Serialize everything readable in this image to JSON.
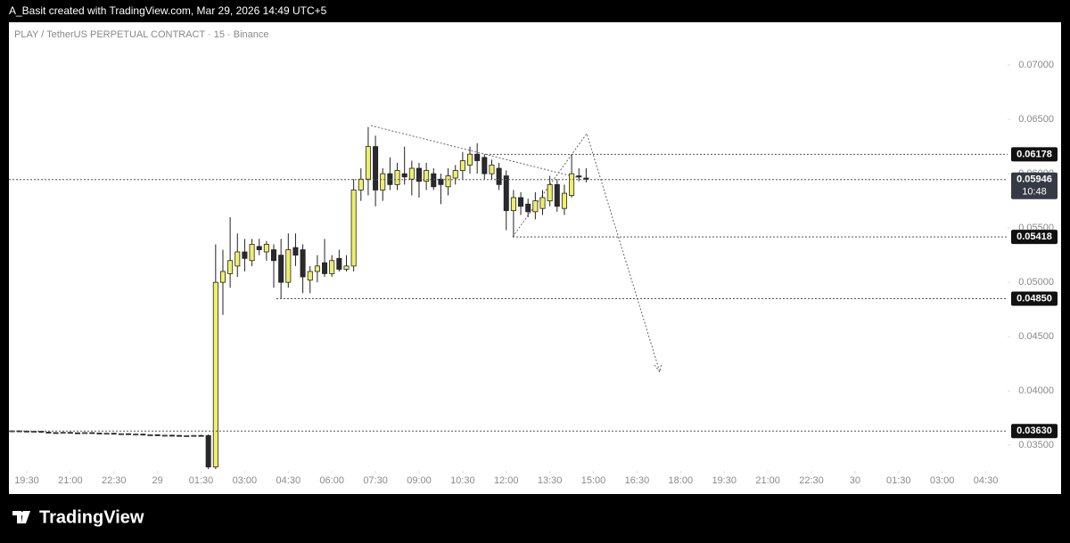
{
  "header": "A_Basit created with TradingView.com, Mar 29, 2026 14:49 UTC+5",
  "footer": "TradingView",
  "chart_data": {
    "type": "candlestick",
    "title": "PLAY / TetherUS PERPETUAL CONTRACT · 15 · Binance",
    "up_color": "#eef06a",
    "down_color": "#2a2a2e",
    "x": [
      -2,
      -1,
      0,
      1,
      2,
      3,
      4,
      5,
      6,
      7,
      8,
      9,
      10,
      11,
      12,
      13,
      14,
      15,
      16,
      17,
      18,
      19,
      20,
      21,
      22,
      23,
      24,
      25,
      26,
      27,
      28,
      29,
      30,
      31,
      32,
      33,
      34,
      35,
      36,
      37,
      38,
      39,
      40,
      41,
      42,
      43,
      44,
      45,
      46,
      47,
      48,
      49,
      50,
      51,
      52,
      53,
      54,
      55,
      56,
      57,
      58,
      59,
      60,
      61,
      62,
      63,
      64,
      65,
      66,
      67,
      68,
      69,
      70,
      71,
      72,
      73,
      74,
      75,
      76,
      77
    ],
    "open": [
      0.0363,
      0.03632,
      0.0363,
      0.03625,
      0.03628,
      0.0362,
      0.03616,
      0.03612,
      0.03618,
      0.03614,
      0.0361,
      0.03616,
      0.03612,
      0.03608,
      0.0361,
      0.03604,
      0.03606,
      0.036,
      0.03602,
      0.03594,
      0.03596,
      0.0359,
      0.03592,
      0.0359,
      0.03586,
      0.03588,
      0.0359,
      0.03588,
      0.033,
      0.05,
      0.0508,
      0.0515,
      0.0528,
      0.052,
      0.0533,
      0.0528,
      0.053,
      0.0525,
      0.05,
      0.0532,
      0.053,
      0.0502,
      0.051,
      0.0518,
      0.0508,
      0.0522,
      0.0512,
      0.0515,
      0.0585,
      0.0595,
      0.0625,
      0.0585,
      0.06,
      0.059,
      0.06,
      0.0595,
      0.0605,
      0.0593,
      0.06,
      0.0595,
      0.0588,
      0.0596,
      0.0603,
      0.0608,
      0.0618,
      0.0615,
      0.06,
      0.0605,
      0.0598,
      0.0566,
      0.0578,
      0.0572,
      0.0565,
      0.0568,
      0.0575,
      0.059,
      0.0568,
      0.058,
      0.0598,
      0.0596
    ],
    "high": [
      0.03635,
      0.03636,
      0.03634,
      0.03632,
      0.0363,
      0.03625,
      0.0362,
      0.03622,
      0.03622,
      0.03618,
      0.0362,
      0.0362,
      0.03616,
      0.03614,
      0.03614,
      0.0361,
      0.0361,
      0.03606,
      0.03606,
      0.036,
      0.036,
      0.03596,
      0.03598,
      0.03594,
      0.03592,
      0.03594,
      0.03596,
      0.036,
      0.0535,
      0.053,
      0.056,
      0.0545,
      0.054,
      0.054,
      0.054,
      0.0538,
      0.0535,
      0.054,
      0.0545,
      0.0545,
      0.0535,
      0.0515,
      0.0525,
      0.054,
      0.0525,
      0.053,
      0.0525,
      0.0595,
      0.0605,
      0.0643,
      0.0635,
      0.0605,
      0.0615,
      0.061,
      0.0625,
      0.0612,
      0.061,
      0.061,
      0.0605,
      0.06,
      0.0605,
      0.0608,
      0.062,
      0.0625,
      0.0628,
      0.0618,
      0.0613,
      0.061,
      0.0603,
      0.0585,
      0.0583,
      0.0577,
      0.0583,
      0.0585,
      0.0598,
      0.0595,
      0.059,
      0.0618,
      0.0605,
      0.0605
    ],
    "low": [
      0.03625,
      0.03628,
      0.03622,
      0.0362,
      0.03615,
      0.03612,
      0.03608,
      0.03608,
      0.0361,
      0.03606,
      0.03606,
      0.03608,
      0.03604,
      0.03602,
      0.036,
      0.03598,
      0.03596,
      0.03594,
      0.0359,
      0.03588,
      0.03586,
      0.03584,
      0.03586,
      0.03582,
      0.0358,
      0.03582,
      0.03584,
      0.0328,
      0.0328,
      0.047,
      0.0495,
      0.0505,
      0.051,
      0.0515,
      0.0525,
      0.052,
      0.0495,
      0.0485,
      0.0495,
      0.0515,
      0.049,
      0.049,
      0.05,
      0.0505,
      0.0505,
      0.051,
      0.051,
      0.051,
      0.0575,
      0.058,
      0.057,
      0.0575,
      0.0585,
      0.0585,
      0.059,
      0.058,
      0.0578,
      0.0585,
      0.0585,
      0.0572,
      0.058,
      0.059,
      0.0595,
      0.06,
      0.06,
      0.0595,
      0.0595,
      0.0585,
      0.0548,
      0.0542,
      0.0562,
      0.056,
      0.0558,
      0.0562,
      0.057,
      0.0565,
      0.0562,
      0.0578,
      0.0593,
      0.0592
    ],
    "close": [
      0.03632,
      0.0363,
      0.03625,
      0.03628,
      0.0362,
      0.03616,
      0.03612,
      0.03618,
      0.03614,
      0.0361,
      0.03616,
      0.03612,
      0.03608,
      0.0361,
      0.03604,
      0.03606,
      0.036,
      0.03602,
      0.03594,
      0.03596,
      0.0359,
      0.03592,
      0.0359,
      0.03586,
      0.03588,
      0.0359,
      0.03588,
      0.033,
      0.05,
      0.051,
      0.052,
      0.0528,
      0.0522,
      0.0535,
      0.053,
      0.0535,
      0.052,
      0.05,
      0.053,
      0.0525,
      0.0505,
      0.051,
      0.0515,
      0.0508,
      0.052,
      0.0512,
      0.0515,
      0.0585,
      0.0595,
      0.0625,
      0.0585,
      0.06,
      0.059,
      0.0603,
      0.0597,
      0.0605,
      0.0593,
      0.0603,
      0.0588,
      0.059,
      0.0598,
      0.0603,
      0.0612,
      0.0618,
      0.0612,
      0.06,
      0.0608,
      0.059,
      0.0566,
      0.0578,
      0.057,
      0.0565,
      0.0575,
      0.0578,
      0.059,
      0.057,
      0.0582,
      0.06,
      0.0597,
      0.0595
    ],
    "xlim": [
      -2.45,
      135
    ],
    "ylim": [
      0.0737,
      0.0328
    ],
    "yticks": [
      {
        "value": 0.035,
        "label": "0.03500"
      },
      {
        "value": 0.04,
        "label": "0.04000"
      },
      {
        "value": 0.045,
        "label": "0.04500"
      },
      {
        "value": 0.05,
        "label": "0.05000"
      },
      {
        "value": 0.055,
        "label": "0.05500"
      },
      {
        "value": 0.06,
        "label": "0.06000"
      },
      {
        "value": 0.065,
        "label": "0.06500"
      },
      {
        "value": 0.07,
        "label": "0.07000"
      }
    ],
    "xticks": [
      {
        "value": 0,
        "label": "19:30"
      },
      {
        "value": 6,
        "label": "21:00"
      },
      {
        "value": 12,
        "label": "22:30"
      },
      {
        "value": 18,
        "label": "29"
      },
      {
        "value": 24,
        "label": "01:30"
      },
      {
        "value": 30,
        "label": "03:00"
      },
      {
        "value": 36,
        "label": "04:30"
      },
      {
        "value": 42,
        "label": "06:00"
      },
      {
        "value": 48,
        "label": "07:30"
      },
      {
        "value": 54,
        "label": "09:00"
      },
      {
        "value": 60,
        "label": "10:30"
      },
      {
        "value": 66,
        "label": "12:00"
      },
      {
        "value": 72,
        "label": "13:30"
      },
      {
        "value": 78,
        "label": "15:00"
      },
      {
        "value": 84,
        "label": "16:30"
      },
      {
        "value": 90,
        "label": "18:00"
      },
      {
        "value": 96,
        "label": "19:30"
      },
      {
        "value": 102,
        "label": "21:00"
      },
      {
        "value": 108,
        "label": "22:30"
      },
      {
        "value": 114,
        "label": "30"
      },
      {
        "value": 120,
        "label": "01:30"
      },
      {
        "value": 126,
        "label": "03:00"
      },
      {
        "value": 132,
        "label": "04:30"
      }
    ],
    "levels": [
      {
        "value": 0.06178,
        "label": "0.06178"
      },
      {
        "value": 0.05418,
        "label": "0.05418"
      },
      {
        "value": 0.0485,
        "label": "0.04850"
      },
      {
        "value": 0.0363,
        "label": "0.03630"
      }
    ],
    "last_price": {
      "value": 0.05946,
      "label": "0.05946"
    },
    "countdown": "10:48"
  }
}
